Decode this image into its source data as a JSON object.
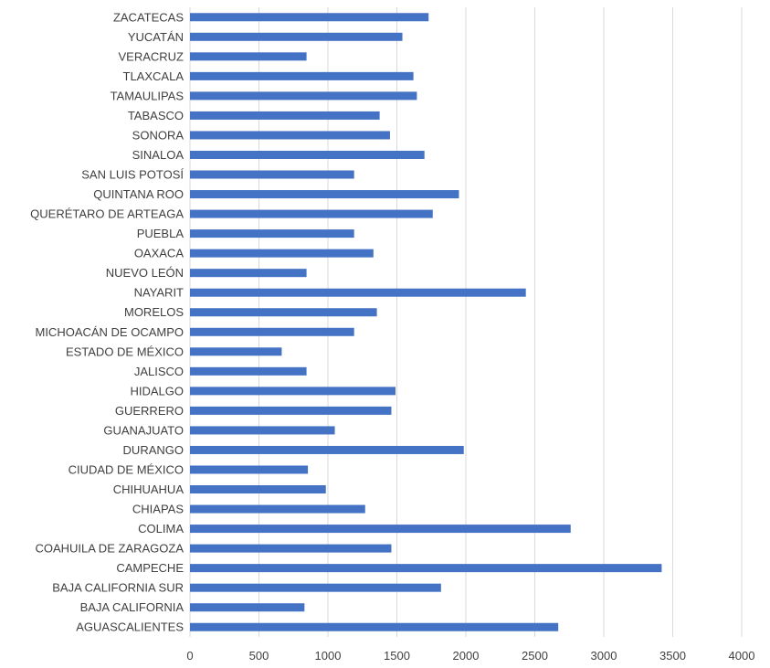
{
  "chart_data": {
    "type": "bar",
    "orientation": "horizontal",
    "title": "",
    "xlabel": "",
    "ylabel": "",
    "xlim": [
      0,
      4000
    ],
    "x_ticks": [
      0,
      500,
      1000,
      1500,
      2000,
      2500,
      3000,
      3500,
      4000
    ],
    "grid": "vertical",
    "legend": "none",
    "bar_color": "#4472c4",
    "categories": [
      "AGUASCALIENTES",
      "BAJA CALIFORNIA",
      "BAJA CALIFORNIA SUR",
      "CAMPECHE",
      "COAHUILA DE ZARAGOZA",
      "COLIMA",
      "CHIAPAS",
      "CHIHUAHUA",
      "CIUDAD DE MÉXICO",
      "DURANGO",
      "GUANAJUATO",
      "GUERRERO",
      "HIDALGO",
      "JALISCO",
      "ESTADO DE MÉXICO",
      "MICHOACÁN DE OCAMPO",
      "MORELOS",
      "NAYARIT",
      "NUEVO LEÓN",
      "OAXACA",
      "PUEBLA",
      "QUERÉTARO DE ARTEAGA",
      "QUINTANA ROO",
      "SAN LUIS POTOSÍ",
      "SINALOA",
      "SONORA",
      "TABASCO",
      "TAMAULIPAS",
      "TLAXCALA",
      "VERACRUZ",
      "YUCATÁN",
      "ZACATECAS"
    ],
    "values": [
      2670,
      830,
      1820,
      3420,
      1460,
      2760,
      1270,
      985,
      855,
      1985,
      1050,
      1460,
      1490,
      845,
      665,
      1190,
      1355,
      2435,
      845,
      1330,
      1190,
      1760,
      1950,
      1190,
      1700,
      1450,
      1375,
      1645,
      1620,
      845,
      1540,
      1730
    ]
  }
}
